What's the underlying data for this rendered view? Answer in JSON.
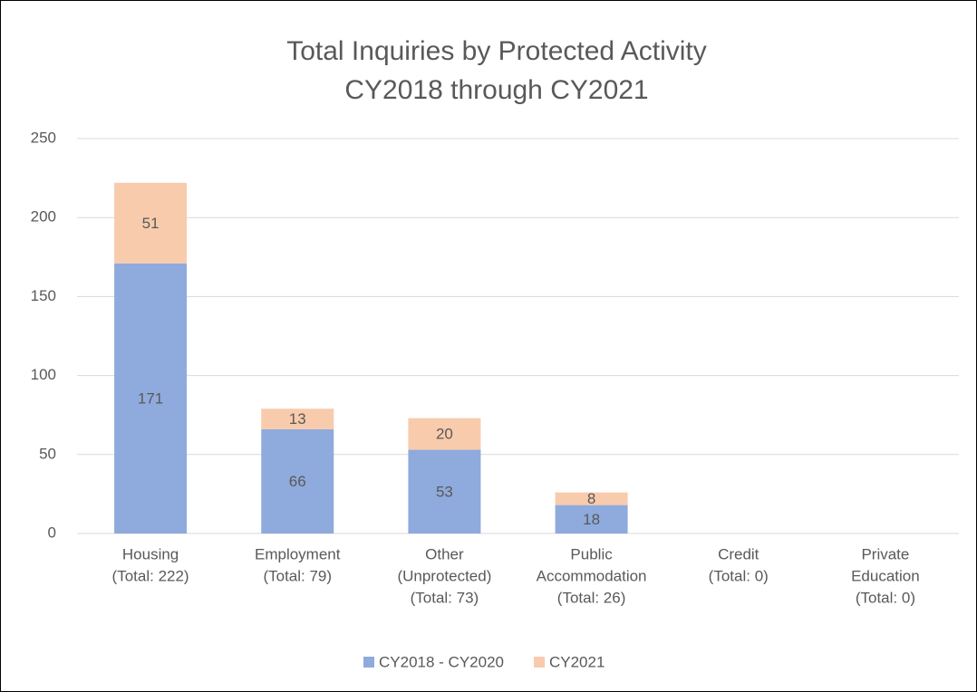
{
  "chart_data": {
    "type": "stacked_bar",
    "title": "Total Inquiries by Protected Activity",
    "subtitle": "CY2018 through CY2021",
    "categories": [
      [
        "Housing",
        "(Total: 222)"
      ],
      [
        "Employment",
        "(Total: 79)"
      ],
      [
        "Other",
        "(Unprotected)",
        "(Total: 73)"
      ],
      [
        "Public",
        "Accommodation",
        "(Total: 26)"
      ],
      [
        "Credit",
        "(Total: 0)"
      ],
      [
        "Private",
        "Education",
        "(Total: 0)"
      ]
    ],
    "series": [
      {
        "name": "CY2018 - CY2020",
        "color": "#8faadc",
        "values": [
          171,
          66,
          53,
          18,
          0,
          0
        ]
      },
      {
        "name": "CY2021",
        "color": "#f8cbad",
        "values": [
          51,
          13,
          20,
          8,
          0,
          0
        ]
      }
    ],
    "ylim": [
      0,
      250
    ],
    "yticks": [
      0,
      50,
      100,
      150,
      200,
      250
    ],
    "grid": true,
    "legend": "bottom"
  }
}
